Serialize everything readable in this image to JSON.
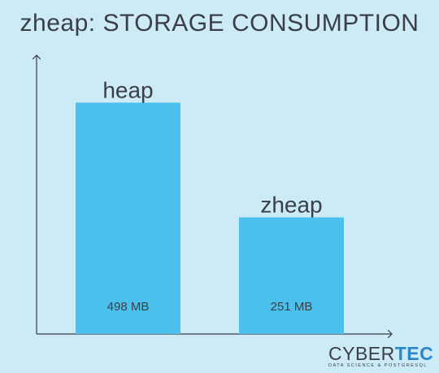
{
  "chart_data": {
    "type": "bar",
    "title": "zheap: STORAGE CONSUMPTION",
    "categories": [
      "heap",
      "zheap"
    ],
    "values": [
      498,
      251
    ],
    "value_labels": [
      "498 MB",
      "251 MB"
    ],
    "unit": "MB",
    "ylim": [
      0,
      600
    ],
    "xlabel": "",
    "ylabel": "",
    "grid": false,
    "bar_color": "#4cc0ec",
    "axis_color": "#3a3f47",
    "text_color": "#3a3f47",
    "background": "#cdeaf7"
  },
  "logo": {
    "word_main": "CYBER",
    "word_accent": "TEC",
    "tagline": "DATA SCIENCE & POSTGRESQL",
    "accent_color": "#2b87c9"
  }
}
